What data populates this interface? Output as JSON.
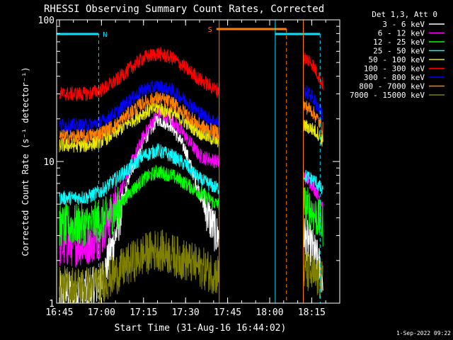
{
  "chart_data": {
    "type": "line",
    "title": "RHESSI Observing Summary Count Rates, Corrected",
    "xlabel": "Start Time (31-Aug-16 16:44:02)",
    "ylabel": "Corrected Count Rate (s⁻¹ detector⁻¹)",
    "yscale": "log",
    "ylim": [
      1,
      100
    ],
    "xlim": [
      "16:44",
      "18:25"
    ],
    "x_ticks": [
      "16:45",
      "17:00",
      "17:15",
      "17:30",
      "17:45",
      "18:00",
      "18:15"
    ],
    "y_ticks": [
      "1",
      "10",
      "100"
    ],
    "legend_title": "Det 1,3, Att 0",
    "legend_position": "top-right",
    "footer": "1-Sep-2022 09:22",
    "gaps": [
      [
        "17:42",
        "18:12"
      ]
    ],
    "flag_bars": [
      {
        "label": "N",
        "start": "16:44",
        "end": "16:59",
        "color": "#00e5ff"
      },
      {
        "label": "S",
        "start": "17:41",
        "end": "18:06",
        "color": "#ff7f00"
      },
      {
        "label": "",
        "start": "18:02",
        "end": "18:18",
        "color": "#00e5ff"
      }
    ],
    "series": [
      {
        "name": "3 - 6 keV",
        "color": "#ffffff",
        "times": [
          "16:45",
          "16:55",
          "17:00",
          "17:05",
          "17:10",
          "17:15",
          "17:20",
          "17:25",
          "17:30",
          "17:35",
          "17:41",
          "18:12",
          "18:15",
          "18:17",
          "18:19"
        ],
        "values": [
          1.2,
          1.2,
          1.4,
          3,
          8,
          14,
          20,
          18,
          12,
          6,
          3,
          3,
          2.5,
          2,
          1.5
        ]
      },
      {
        "name": "6 - 12 keV",
        "color": "#ff00ff",
        "times": [
          "16:45",
          "16:55",
          "17:00",
          "17:05",
          "17:10",
          "17:15",
          "17:20",
          "17:25",
          "17:30",
          "17:35",
          "17:41",
          "18:12",
          "18:15",
          "18:17",
          "18:19"
        ],
        "values": [
          2.5,
          2.6,
          3,
          5,
          9,
          15,
          22,
          20,
          15,
          11,
          10,
          8,
          7,
          6,
          5
        ]
      },
      {
        "name": "12 - 25 keV",
        "color": "#00ff00",
        "times": [
          "16:45",
          "16:55",
          "17:00",
          "17:05",
          "17:10",
          "17:15",
          "17:20",
          "17:25",
          "17:30",
          "17:35",
          "17:41",
          "18:12",
          "18:15",
          "18:17",
          "18:19"
        ],
        "values": [
          3.5,
          3.6,
          3.8,
          4.5,
          6,
          7.5,
          8.5,
          8,
          7,
          6,
          5,
          5,
          4.5,
          4,
          3.5
        ]
      },
      {
        "name": "25 - 50 keV",
        "color": "#00ffff",
        "times": [
          "16:45",
          "16:55",
          "17:00",
          "17:05",
          "17:10",
          "17:15",
          "17:20",
          "17:25",
          "17:30",
          "17:35",
          "17:41",
          "18:12",
          "18:15",
          "18:17",
          "18:19"
        ],
        "values": [
          5.5,
          5.6,
          6.2,
          7.5,
          9,
          11,
          12,
          11,
          9.5,
          7.5,
          6.5,
          8,
          7.5,
          7,
          6
        ]
      },
      {
        "name": "50 - 100 keV",
        "color": "#e8e800",
        "times": [
          "16:45",
          "16:55",
          "17:00",
          "17:05",
          "17:10",
          "17:15",
          "17:20",
          "17:25",
          "17:30",
          "17:35",
          "17:41",
          "18:12",
          "18:15",
          "18:17",
          "18:19"
        ],
        "values": [
          13,
          13,
          14,
          16,
          19,
          22,
          24,
          22,
          19,
          16,
          14,
          18,
          17,
          16,
          14
        ]
      },
      {
        "name": "100 - 300 keV",
        "color": "#ff0000",
        "times": [
          "16:45",
          "16:55",
          "17:00",
          "17:05",
          "17:10",
          "17:15",
          "17:20",
          "17:25",
          "17:30",
          "17:35",
          "17:41",
          "18:12",
          "18:15",
          "18:17",
          "18:19"
        ],
        "values": [
          30,
          30,
          32,
          37,
          45,
          54,
          58,
          54,
          46,
          38,
          32,
          55,
          50,
          42,
          35
        ]
      },
      {
        "name": "300 - 800 keV",
        "color": "#0000ff",
        "times": [
          "16:45",
          "16:55",
          "17:00",
          "17:05",
          "17:10",
          "17:15",
          "17:20",
          "17:25",
          "17:30",
          "17:35",
          "17:41",
          "18:12",
          "18:15",
          "18:17",
          "18:19"
        ],
        "values": [
          18,
          18,
          19,
          22,
          27,
          32,
          34,
          32,
          27,
          22,
          19,
          32,
          29,
          25,
          21
        ]
      },
      {
        "name": "800 - 7000 keV",
        "color": "#ff7f00",
        "times": [
          "16:45",
          "16:55",
          "17:00",
          "17:05",
          "17:10",
          "17:15",
          "17:20",
          "17:25",
          "17:30",
          "17:35",
          "17:41",
          "18:12",
          "18:15",
          "18:17",
          "18:19"
        ],
        "values": [
          15,
          15,
          16,
          18,
          22,
          26,
          28,
          26,
          22,
          18,
          16,
          25,
          23,
          20,
          17
        ]
      },
      {
        "name": "7000 - 15000 keV",
        "color": "#808000",
        "times": [
          "16:45",
          "16:55",
          "17:00",
          "17:05",
          "17:10",
          "17:15",
          "17:20",
          "17:25",
          "17:30",
          "17:35",
          "17:41",
          "18:12",
          "18:15",
          "18:17",
          "18:19"
        ],
        "values": [
          1.3,
          1.3,
          1.4,
          1.6,
          1.9,
          2.2,
          2.4,
          2.2,
          2,
          1.8,
          1.6,
          1.7,
          1.6,
          1.5,
          1.4
        ]
      }
    ]
  }
}
